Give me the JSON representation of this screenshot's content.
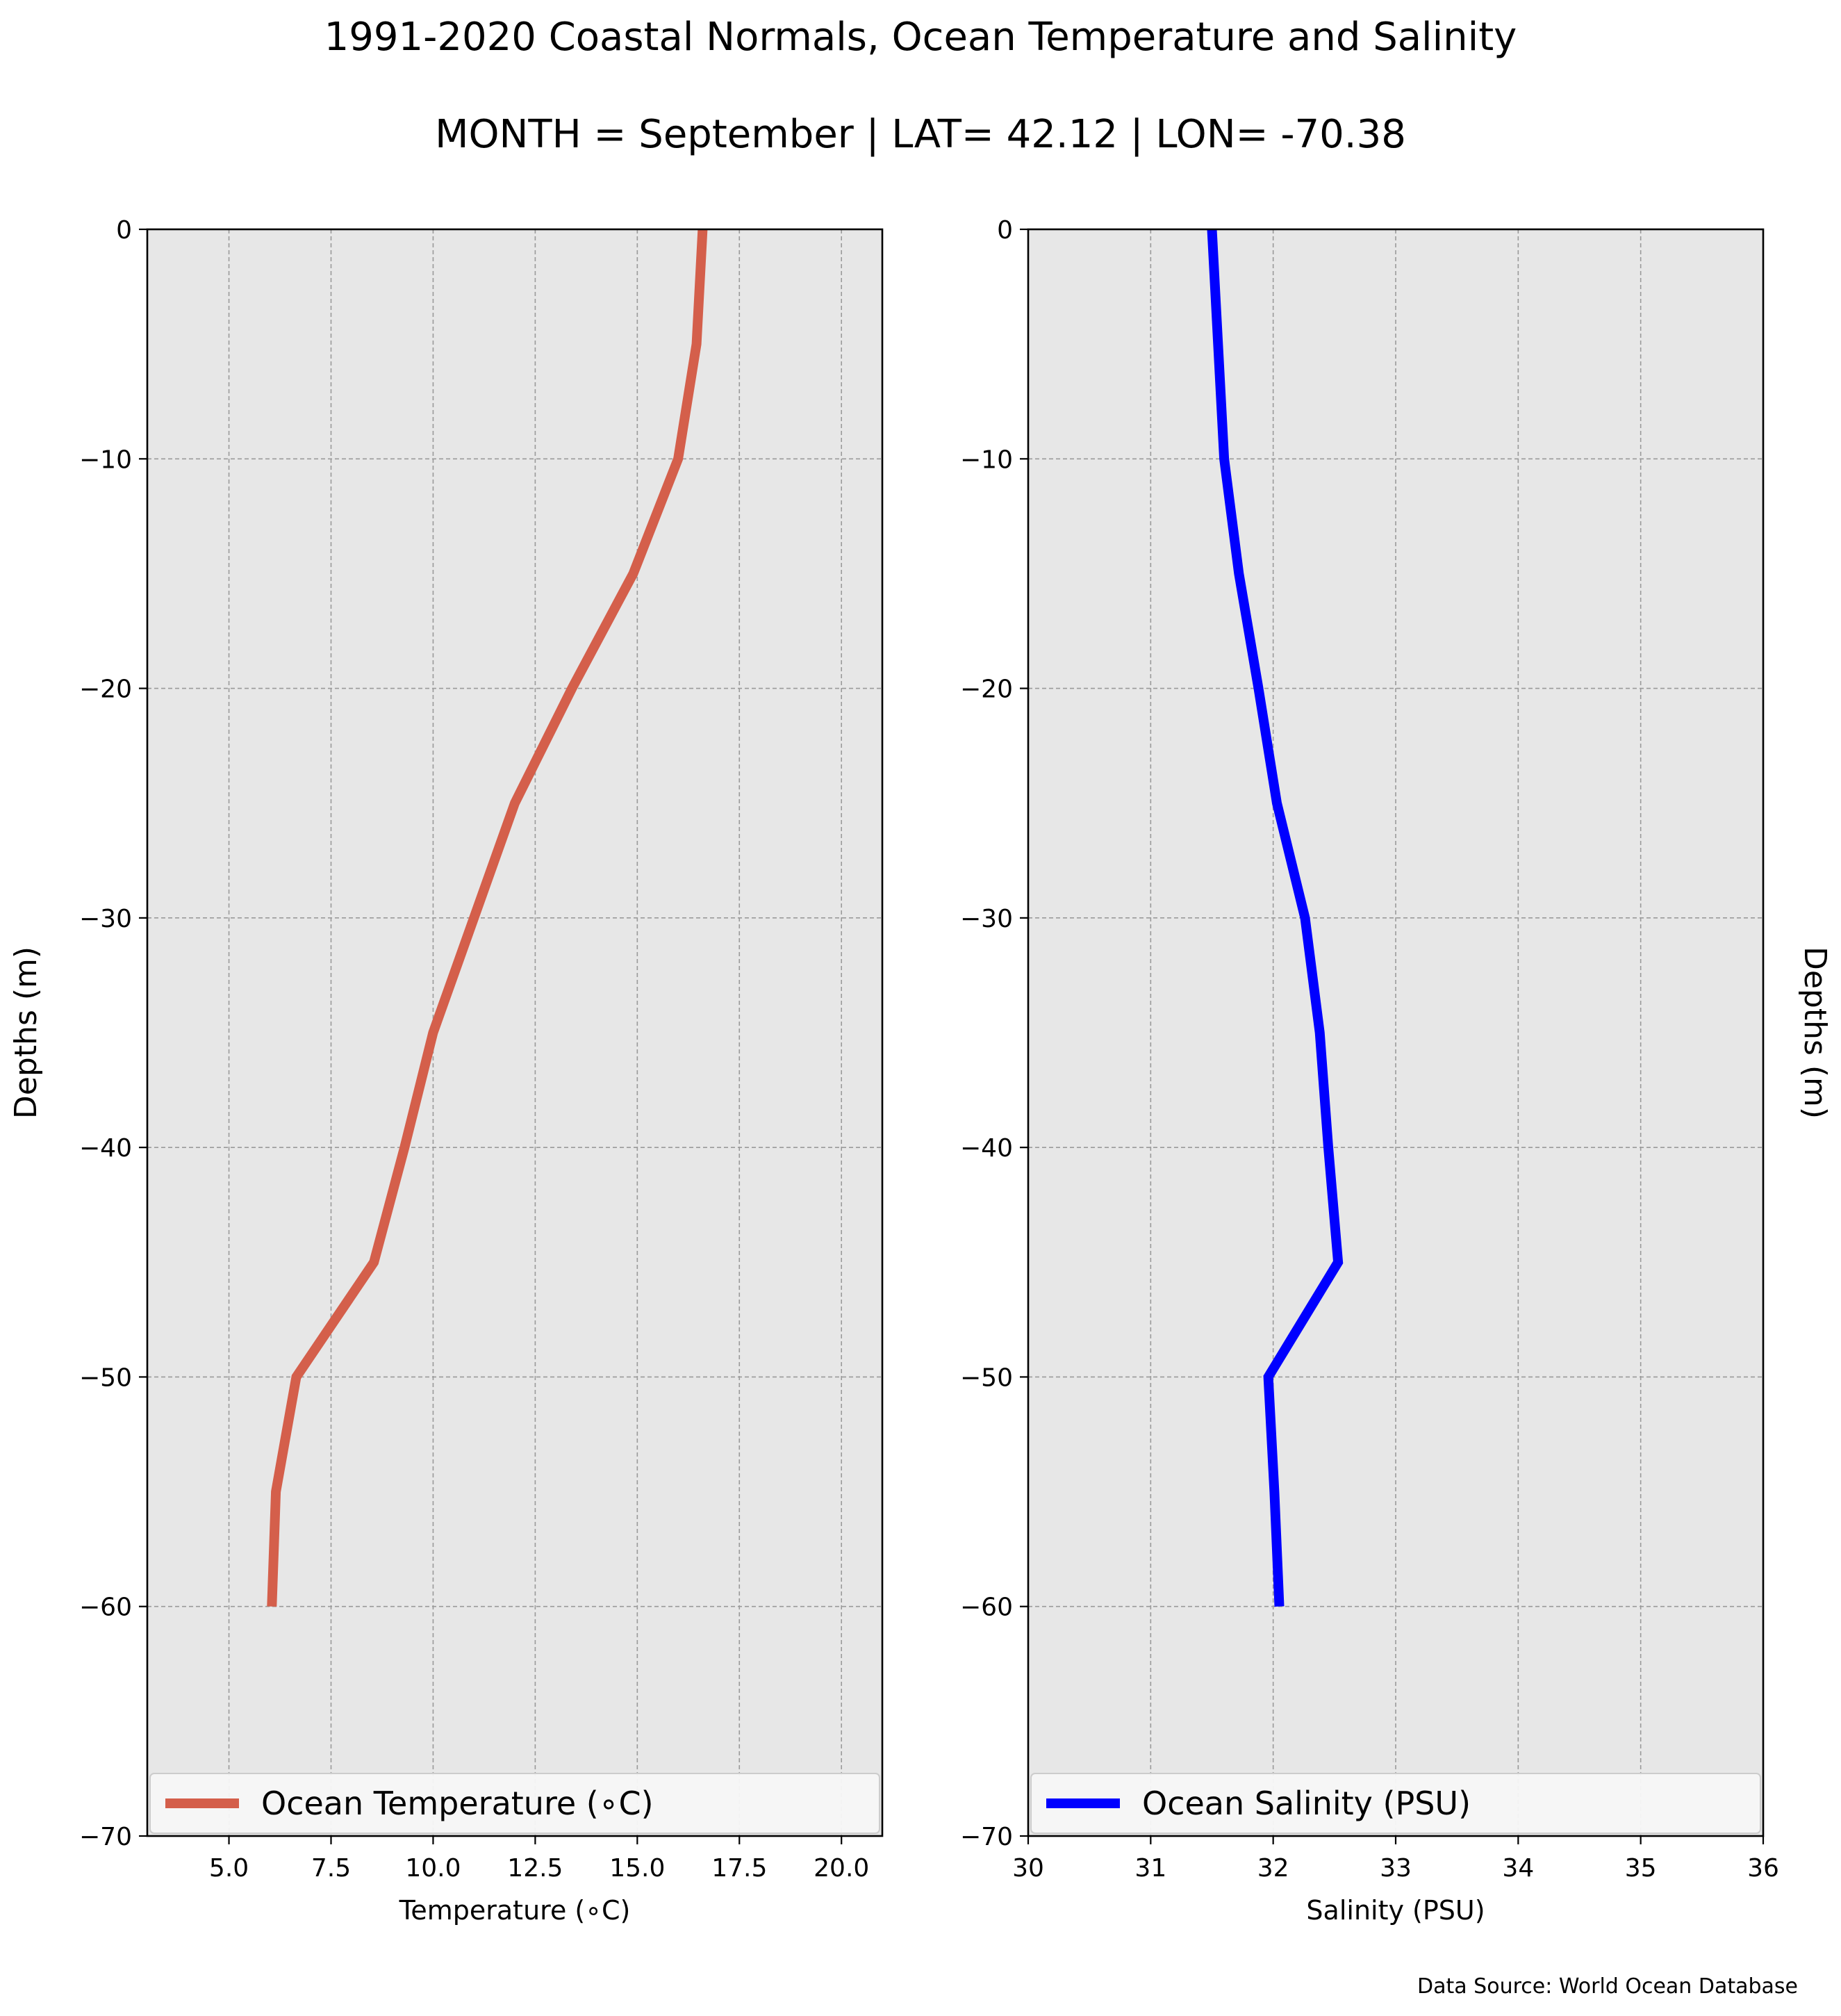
{
  "figure": {
    "title": "1991-2020 Coastal Normals, Ocean Temperature and Salinity",
    "subtitle": "MONTH = September | LAT= 42.12 | LON= -70.38",
    "source": "Data Source: World Ocean Database"
  },
  "chart_data": [
    {
      "type": "line",
      "orientation": "depth-profile",
      "xlabel": "Temperature ($^\\circ$C)",
      "xlabel_display": "Temperature (∘C)",
      "ylabel": "Depths (m)",
      "xlim": [
        3,
        21
      ],
      "ylim": [
        -70,
        0
      ],
      "xticks": [
        5.0,
        7.5,
        10.0,
        12.5,
        15.0,
        17.5,
        20.0
      ],
      "xtick_labels": [
        "5.0",
        "7.5",
        "10.0",
        "12.5",
        "15.0",
        "17.5",
        "20.0"
      ],
      "yticks": [
        0,
        -10,
        -20,
        -30,
        -40,
        -50,
        -60,
        -70
      ],
      "ytick_labels": [
        "0",
        "−10",
        "−20",
        "−30",
        "−40",
        "−50",
        "−60",
        "−70"
      ],
      "grid": true,
      "legend_position": "bottom",
      "series": [
        {
          "name": "Ocean Temperature (∘C)",
          "color": "#d45f4b",
          "x": [
            16.6,
            16.45,
            16.0,
            14.9,
            13.4,
            12.0,
            11.0,
            10.0,
            9.3,
            8.55,
            6.65,
            6.15,
            6.05
          ],
          "y": [
            0,
            -5,
            -10,
            -15,
            -20,
            -25,
            -30,
            -35,
            -40,
            -45,
            -50,
            -55,
            -60
          ]
        }
      ]
    },
    {
      "type": "line",
      "orientation": "depth-profile",
      "xlabel": "Salinity (PSU)",
      "ylabel": "Depths (m)",
      "xlim": [
        30,
        36
      ],
      "ylim": [
        -70,
        0
      ],
      "xticks": [
        30,
        31,
        32,
        33,
        34,
        35,
        36
      ],
      "xtick_labels": [
        "30",
        "31",
        "32",
        "33",
        "34",
        "35",
        "36"
      ],
      "yticks": [
        0,
        -10,
        -20,
        -30,
        -40,
        -50,
        -60,
        -70
      ],
      "ytick_labels": [
        "0",
        "−10",
        "−20",
        "−30",
        "−40",
        "−50",
        "−60",
        "−70"
      ],
      "grid": true,
      "legend_position": "bottom",
      "series": [
        {
          "name": "Ocean Salinity (PSU)",
          "color": "#0000ff",
          "x": [
            31.5,
            31.55,
            31.6,
            31.72,
            31.88,
            32.03,
            32.26,
            32.38,
            32.45,
            32.53,
            31.96,
            32.01,
            32.05
          ],
          "y": [
            0,
            -5,
            -10,
            -15,
            -20,
            -25,
            -30,
            -35,
            -40,
            -45,
            -50,
            -55,
            -60
          ]
        }
      ]
    }
  ]
}
